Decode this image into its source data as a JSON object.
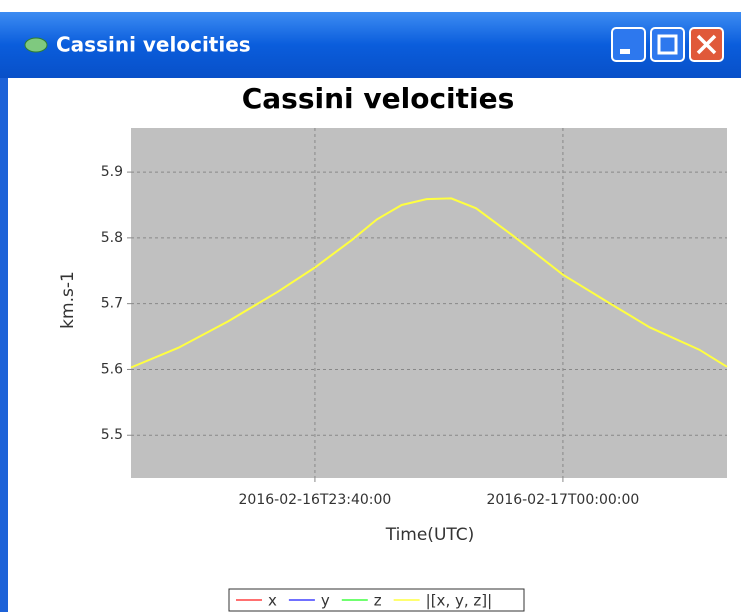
{
  "window": {
    "title": "Cassini velocities"
  },
  "chart_data": {
    "type": "line",
    "title": "Cassini velocities",
    "x_label": "Time(UTC)",
    "y_label": "km.s-1",
    "x": [
      "2016-02-16T23:25:10",
      "2016-02-16T23:29:00",
      "2016-02-16T23:33:00",
      "2016-02-16T23:37:00",
      "2016-02-16T23:40:00",
      "2016-02-16T23:43:00",
      "2016-02-16T23:45:00",
      "2016-02-16T23:47:00",
      "2016-02-16T23:49:00",
      "2016-02-16T23:51:00",
      "2016-02-16T23:53:00",
      "2016-02-16T23:56:00",
      "2016-02-17T00:00:00",
      "2016-02-17T00:04:00",
      "2016-02-17T00:07:00",
      "2016-02-17T00:11:00",
      "2016-02-17T00:13:14"
    ],
    "series": [
      {
        "name": "x",
        "color": "#ff4040",
        "values": [
          null,
          null,
          null,
          null,
          null,
          null,
          null,
          null,
          null,
          null,
          null,
          null,
          null,
          null,
          null,
          null,
          null
        ]
      },
      {
        "name": "y",
        "color": "#4040ff",
        "values": [
          null,
          null,
          null,
          null,
          null,
          null,
          null,
          null,
          null,
          null,
          null,
          null,
          null,
          null,
          null,
          null,
          null
        ]
      },
      {
        "name": "z",
        "color": "#40ff40",
        "values": [
          null,
          null,
          null,
          null,
          null,
          null,
          null,
          null,
          null,
          null,
          null,
          null,
          null,
          null,
          null,
          null,
          null
        ]
      },
      {
        "name": "|[x, y, z]|",
        "color": "#ffff40",
        "values": [
          5.603,
          5.633,
          5.673,
          5.718,
          5.755,
          5.797,
          5.828,
          5.85,
          5.859,
          5.86,
          5.845,
          5.803,
          5.744,
          5.698,
          5.664,
          5.63,
          5.604
        ]
      }
    ],
    "xlim": [
      "2016-02-16T23:25:10",
      "2016-02-17T00:13:14"
    ],
    "xticks": [
      "2016-02-16T23:40:00",
      "2016-02-17T00:00:00"
    ],
    "ylim": [
      5.435,
      5.967
    ],
    "yticks": [
      5.5,
      5.6,
      5.7,
      5.8,
      5.9
    ],
    "grid": true,
    "legend": "bottom"
  }
}
